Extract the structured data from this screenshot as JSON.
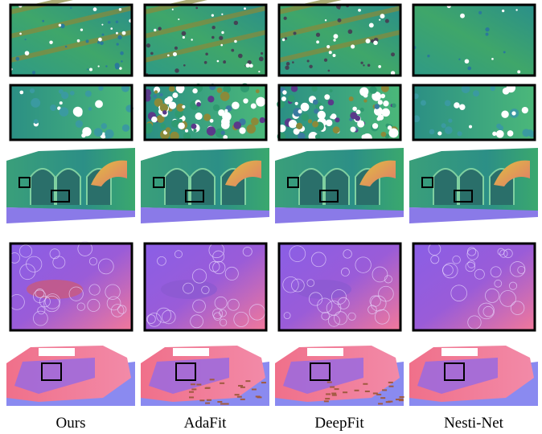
{
  "columns": [
    {
      "label": "Ours"
    },
    {
      "label": "AdaFit"
    },
    {
      "label": "DeepFit"
    },
    {
      "label": "Nesti-Net"
    }
  ]
}
